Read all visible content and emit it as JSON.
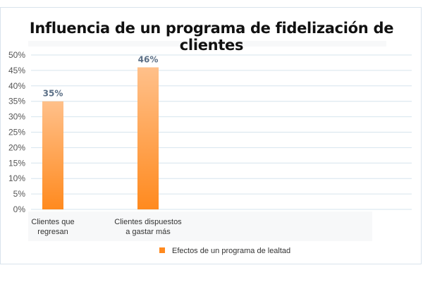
{
  "chart_data": {
    "type": "bar",
    "title": "Influencia de un programa de fidelización de clientes",
    "categories": [
      [
        "Clientes que",
        "regresan"
      ],
      [
        "Clientes dispuestos",
        "a gastar más"
      ]
    ],
    "series": [
      {
        "name": "Efectos de un programa de lealtad",
        "values": [
          35,
          46
        ]
      }
    ],
    "data_labels": [
      "35%",
      "46%"
    ],
    "y_ticks": [
      "0%",
      "5%",
      "10%",
      "15%",
      "20%",
      "25%",
      "30%",
      "35%",
      "40%",
      "45%",
      "50%"
    ],
    "ylim": [
      0,
      50
    ],
    "grid": true,
    "legend": "bottom",
    "colors": {
      "bar_top": "#ffc08a",
      "bar_bottom": "#ff8a1f",
      "grid": "#d6e4ee",
      "label": "#5b6f86"
    }
  }
}
